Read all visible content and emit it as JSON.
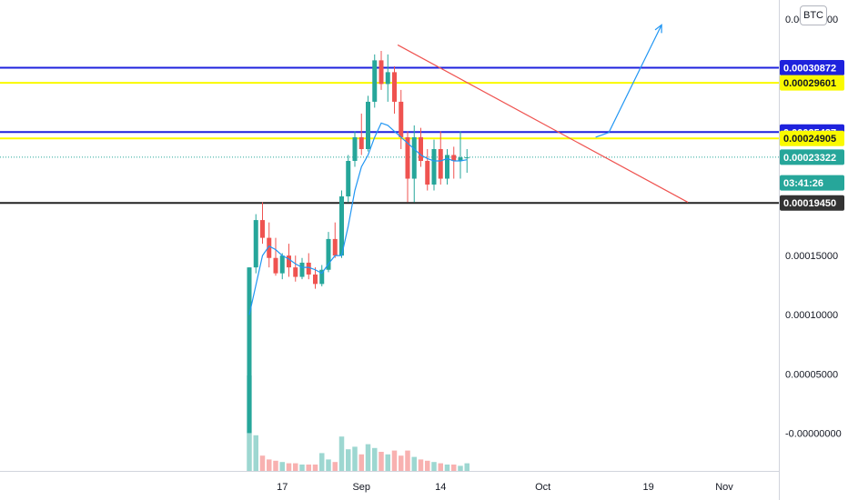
{
  "currency_badge": "BTC",
  "chart_data": {
    "type": "candlestick",
    "title": "",
    "xlabel": "",
    "ylabel": "",
    "x_tick_labels": [
      "17",
      "Sep",
      "14",
      "Oct",
      "19",
      "Nov"
    ],
    "y_tick_labels": [
      "0.00035000",
      "0.00015000",
      "0.00010000",
      "0.00005000",
      "-0.00000000"
    ],
    "y_ticks": [
      0.00035,
      0.00015,
      0.0001,
      5e-05,
      0.0
    ],
    "ylim": [
      -3.2e-05,
      0.000366
    ],
    "price_tags": [
      {
        "label": "0.00030872",
        "value": 0.00030872,
        "kind": "level",
        "bg": "#1e22dd",
        "fg": "#ffffff"
      },
      {
        "label": "0.00029601",
        "value": 0.00029601,
        "kind": "level",
        "bg": "#fafa00",
        "fg": "#131722"
      },
      {
        "label": "0.00025437",
        "value": 0.00025437,
        "kind": "level",
        "bg": "#1e22dd",
        "fg": "#ffffff"
      },
      {
        "label": "0.00024905",
        "value": 0.00024905,
        "kind": "level",
        "bg": "#fafa00",
        "fg": "#131722"
      },
      {
        "label": "0.00023322",
        "value": 0.00023322,
        "kind": "last-price",
        "bg": "#26a69a",
        "fg": "#ffffff"
      },
      {
        "label": "03:41:26",
        "value": 0.0002115,
        "kind": "countdown",
        "bg": "#26a69a",
        "fg": "#ffffff"
      },
      {
        "label": "0.00019450",
        "value": 0.0001945,
        "kind": "level",
        "bg": "#333333",
        "fg": "#ffffff"
      }
    ],
    "horizontal_levels": [
      {
        "value": 0.00030872,
        "color": "#1e22dd"
      },
      {
        "value": 0.00029601,
        "color": "#fafa00"
      },
      {
        "value": 0.00025437,
        "color": "#1e22dd"
      },
      {
        "value": 0.00024905,
        "color": "#fafa00"
      },
      {
        "value": 0.0001945,
        "color": "#222222"
      }
    ],
    "last_price": 0.00023322,
    "candles": [
      {
        "o": 0.0,
        "h": 0.00014,
        "l": 0.0,
        "c": 0.00014,
        "vol": 0.75
      },
      {
        "o": 0.00014,
        "h": 0.000185,
        "l": 0.000135,
        "c": 0.00018,
        "vol": 0.28
      },
      {
        "o": 0.00018,
        "h": 0.000195,
        "l": 0.00016,
        "c": 0.000165,
        "vol": 0.12
      },
      {
        "o": 0.000165,
        "h": 0.000178,
        "l": 0.00014,
        "c": 0.000148,
        "vol": 0.09
      },
      {
        "o": 0.000148,
        "h": 0.000165,
        "l": 0.000133,
        "c": 0.000135,
        "vol": 0.08
      },
      {
        "o": 0.000135,
        "h": 0.000152,
        "l": 0.00013,
        "c": 0.00015,
        "vol": 0.07
      },
      {
        "o": 0.00015,
        "h": 0.00016,
        "l": 0.000132,
        "c": 0.00014,
        "vol": 0.06
      },
      {
        "o": 0.00014,
        "h": 0.00015,
        "l": 0.000128,
        "c": 0.000132,
        "vol": 0.06
      },
      {
        "o": 0.000132,
        "h": 0.000148,
        "l": 0.00013,
        "c": 0.000144,
        "vol": 0.05
      },
      {
        "o": 0.000144,
        "h": 0.000152,
        "l": 0.00013,
        "c": 0.000134,
        "vol": 0.05
      },
      {
        "o": 0.000134,
        "h": 0.00014,
        "l": 0.000122,
        "c": 0.000126,
        "vol": 0.05
      },
      {
        "o": 0.000126,
        "h": 0.000142,
        "l": 0.000124,
        "c": 0.000138,
        "vol": 0.14
      },
      {
        "o": 0.000138,
        "h": 0.00017,
        "l": 0.000136,
        "c": 0.000164,
        "vol": 0.09
      },
      {
        "o": 0.000164,
        "h": 0.000178,
        "l": 0.000148,
        "c": 0.00015,
        "vol": 0.07
      },
      {
        "o": 0.00015,
        "h": 0.000205,
        "l": 0.000148,
        "c": 0.0002,
        "vol": 0.27
      },
      {
        "o": 0.0002,
        "h": 0.000235,
        "l": 0.000195,
        "c": 0.00023,
        "vol": 0.17
      },
      {
        "o": 0.00023,
        "h": 0.000255,
        "l": 0.000225,
        "c": 0.00025,
        "vol": 0.19
      },
      {
        "o": 0.00025,
        "h": 0.00027,
        "l": 0.000235,
        "c": 0.00024,
        "vol": 0.13
      },
      {
        "o": 0.00024,
        "h": 0.000285,
        "l": 0.000238,
        "c": 0.00028,
        "vol": 0.21
      },
      {
        "o": 0.00028,
        "h": 0.00032,
        "l": 0.000275,
        "c": 0.000315,
        "vol": 0.18
      },
      {
        "o": 0.000315,
        "h": 0.000323,
        "l": 0.00029,
        "c": 0.000295,
        "vol": 0.15
      },
      {
        "o": 0.000295,
        "h": 0.00032,
        "l": 0.00028,
        "c": 0.000305,
        "vol": 0.13
      },
      {
        "o": 0.000305,
        "h": 0.00031,
        "l": 0.00027,
        "c": 0.00028,
        "vol": 0.16
      },
      {
        "o": 0.00028,
        "h": 0.00029,
        "l": 0.00024,
        "c": 0.00025,
        "vol": 0.12
      },
      {
        "o": 0.00025,
        "h": 0.000255,
        "l": 0.000195,
        "c": 0.000215,
        "vol": 0.16
      },
      {
        "o": 0.000215,
        "h": 0.00026,
        "l": 0.000195,
        "c": 0.00025,
        "vol": 0.11
      },
      {
        "o": 0.00025,
        "h": 0.000258,
        "l": 0.000225,
        "c": 0.00023,
        "vol": 0.09
      },
      {
        "o": 0.00023,
        "h": 0.00024,
        "l": 0.000205,
        "c": 0.00021,
        "vol": 0.08
      },
      {
        "o": 0.00021,
        "h": 0.000248,
        "l": 0.000205,
        "c": 0.00024,
        "vol": 0.07
      },
      {
        "o": 0.00024,
        "h": 0.000255,
        "l": 0.00021,
        "c": 0.000215,
        "vol": 0.06
      },
      {
        "o": 0.000215,
        "h": 0.00024,
        "l": 0.00021,
        "c": 0.000235,
        "vol": 0.05
      },
      {
        "o": 0.000235,
        "h": 0.000242,
        "l": 0.000215,
        "c": 0.00023,
        "vol": 0.05
      },
      {
        "o": 0.00023,
        "h": 0.000255,
        "l": 0.000215,
        "c": 0.000233,
        "vol": 0.04
      },
      {
        "o": 0.000233,
        "h": 0.00024,
        "l": 0.00022,
        "c": 0.000233,
        "vol": 0.06
      }
    ],
    "moving_average": [
      0.0001,
      0.000125,
      0.00015,
      0.000158,
      0.000155,
      0.00015,
      0.000147,
      0.000143,
      0.00014,
      0.00014,
      0.000138,
      0.000135,
      0.000143,
      0.00015,
      0.00015,
      0.000175,
      0.000205,
      0.000225,
      0.000235,
      0.00025,
      0.000262,
      0.00026,
      0.000255,
      0.00025,
      0.000245,
      0.00024,
      0.000235,
      0.000232,
      0.00023,
      0.00023,
      0.000232,
      0.00023,
      0.00023,
      0.000231
    ],
    "trendline": {
      "from": {
        "bar": 22.5,
        "price": 0.000328
      },
      "to": {
        "bar": 66.5,
        "price": 0.000195
      },
      "color": "#ef5350"
    },
    "projection_arrow": {
      "points": [
        {
          "bar": 52.5,
          "price": 0.00025
        },
        {
          "bar": 54.5,
          "price": 0.000254
        },
        {
          "bar": 62.5,
          "price": 0.000345
        }
      ],
      "color": "#2196f3"
    },
    "up_color": "#26a69a",
    "down_color": "#ef5350",
    "ma_color": "#2196f3",
    "grid": false,
    "legend": "none"
  }
}
